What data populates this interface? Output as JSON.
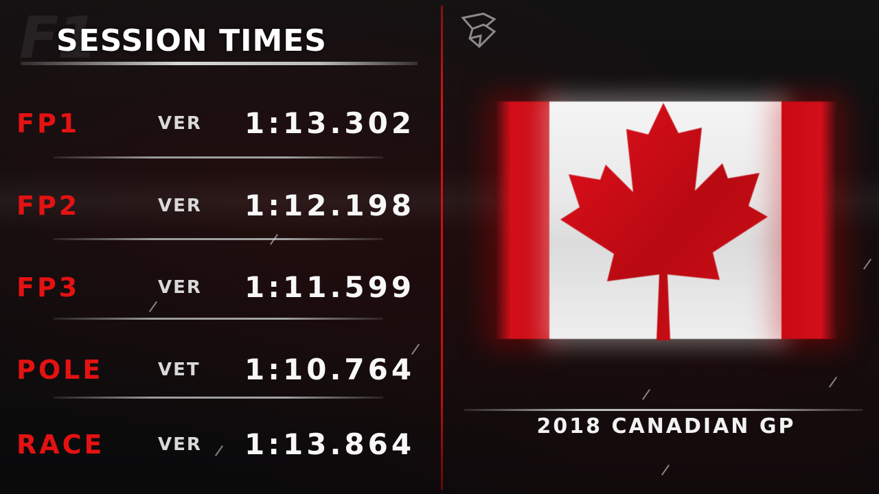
{
  "title": "SESSION TIMES",
  "background_logo": "F1",
  "sessions": [
    {
      "session": "FP1",
      "driver": "VER",
      "time": "1:13.302"
    },
    {
      "session": "FP2",
      "driver": "VER",
      "time": "1:12.198"
    },
    {
      "session": "FP3",
      "driver": "VER",
      "time": "1:11.599"
    },
    {
      "session": "POLE",
      "driver": "VET",
      "time": "1:10.764"
    },
    {
      "session": "RACE",
      "driver": "VER",
      "time": "1:13.864"
    }
  ],
  "event": "2018 CANADIAN GP",
  "flag": {
    "country": "Canada",
    "icon": "canada-flag-icon",
    "red": "#d30f1a",
    "white": "#f2f2f2"
  },
  "colors": {
    "accent_red": "#e41212",
    "background": "#0b0b0c",
    "text": "#f7f7f7"
  }
}
